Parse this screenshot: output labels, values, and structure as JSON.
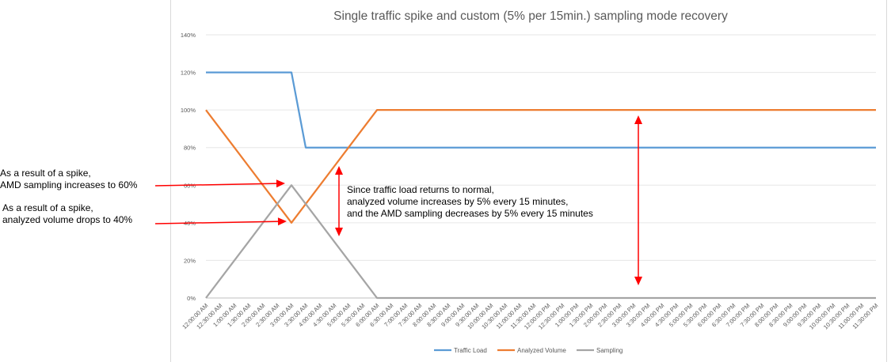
{
  "chart_data": {
    "type": "line",
    "title": "Single traffic spike and custom (5% per 15min.) sampling mode recovery",
    "xlabel": "",
    "ylabel": "",
    "ylim": [
      0,
      140
    ],
    "y_ticks": [
      "0%",
      "20%",
      "40%",
      "60%",
      "80%",
      "100%",
      "120%",
      "140%"
    ],
    "grid": true,
    "legend_position": "bottom",
    "categories": [
      "12:00:00 AM",
      "12:30:00 AM",
      "1:00:00 AM",
      "1:30:00 AM",
      "2:00:00 AM",
      "2:30:00 AM",
      "3:00:00 AM",
      "3:30:00 AM",
      "4:00:00 AM",
      "4:30:00 AM",
      "5:00:00 AM",
      "5:30:00 AM",
      "6:00:00 AM",
      "6:30:00 AM",
      "7:00:00 AM",
      "7:30:00 AM",
      "8:00:00 AM",
      "8:30:00 AM",
      "9:00:00 AM",
      "9:30:00 AM",
      "10:00:00 AM",
      "10:30:00 AM",
      "11:00:00 AM",
      "11:30:00 AM",
      "12:00:00 PM",
      "12:30:00 PM",
      "1:00:00 PM",
      "1:30:00 PM",
      "2:00:00 PM",
      "2:30:00 PM",
      "3:00:00 PM",
      "3:30:00 PM",
      "4:00:00 PM",
      "4:30:00 PM",
      "5:00:00 PM",
      "5:30:00 PM",
      "6:00:00 PM",
      "6:30:00 PM",
      "7:00:00 PM",
      "7:30:00 PM",
      "8:00:00 PM",
      "8:30:00 PM",
      "9:00:00 PM",
      "9:30:00 PM",
      "10:00:00 PM",
      "10:30:00 PM",
      "11:00:00 PM",
      "11:30:00 PM"
    ],
    "series": [
      {
        "name": "Traffic Load",
        "color": "#5b9bd5",
        "values": [
          120,
          120,
          120,
          120,
          120,
          120,
          120,
          80,
          80,
          80,
          80,
          80,
          80,
          80,
          80,
          80,
          80,
          80,
          80,
          80,
          80,
          80,
          80,
          80,
          80,
          80,
          80,
          80,
          80,
          80,
          80,
          80,
          80,
          80,
          80,
          80,
          80,
          80,
          80,
          80,
          80,
          80,
          80,
          80,
          80,
          80,
          80,
          80
        ]
      },
      {
        "name": "Analyzed Volume",
        "color": "#ed7d31",
        "values": [
          100,
          90,
          80,
          70,
          60,
          50,
          40,
          50,
          60,
          70,
          80,
          90,
          100,
          100,
          100,
          100,
          100,
          100,
          100,
          100,
          100,
          100,
          100,
          100,
          100,
          100,
          100,
          100,
          100,
          100,
          100,
          100,
          100,
          100,
          100,
          100,
          100,
          100,
          100,
          100,
          100,
          100,
          100,
          100,
          100,
          100,
          100,
          100
        ]
      },
      {
        "name": "Sampling",
        "color": "#a5a5a5",
        "values": [
          0,
          10,
          20,
          30,
          40,
          50,
          60,
          50,
          40,
          30,
          20,
          10,
          0,
          0,
          0,
          0,
          0,
          0,
          0,
          0,
          0,
          0,
          0,
          0,
          0,
          0,
          0,
          0,
          0,
          0,
          0,
          0,
          0,
          0,
          0,
          0,
          0,
          0,
          0,
          0,
          0,
          0,
          0,
          0,
          0,
          0,
          0,
          0
        ]
      }
    ],
    "annotations": {
      "sampling_spike": [
        "As a result of a spike,",
        "AMD sampling increases to 60%"
      ],
      "volume_drop": [
        "As a result of a spike,",
        "analyzed volume drops to 40%"
      ],
      "recovery": [
        "Since traffic load returns to normal,",
        "analyzed volume increases by 5% every 15 minutes,",
        "and the AMD sampling decreases by 5% every 15 minutes"
      ]
    },
    "arrow_color": "#ff0000"
  }
}
